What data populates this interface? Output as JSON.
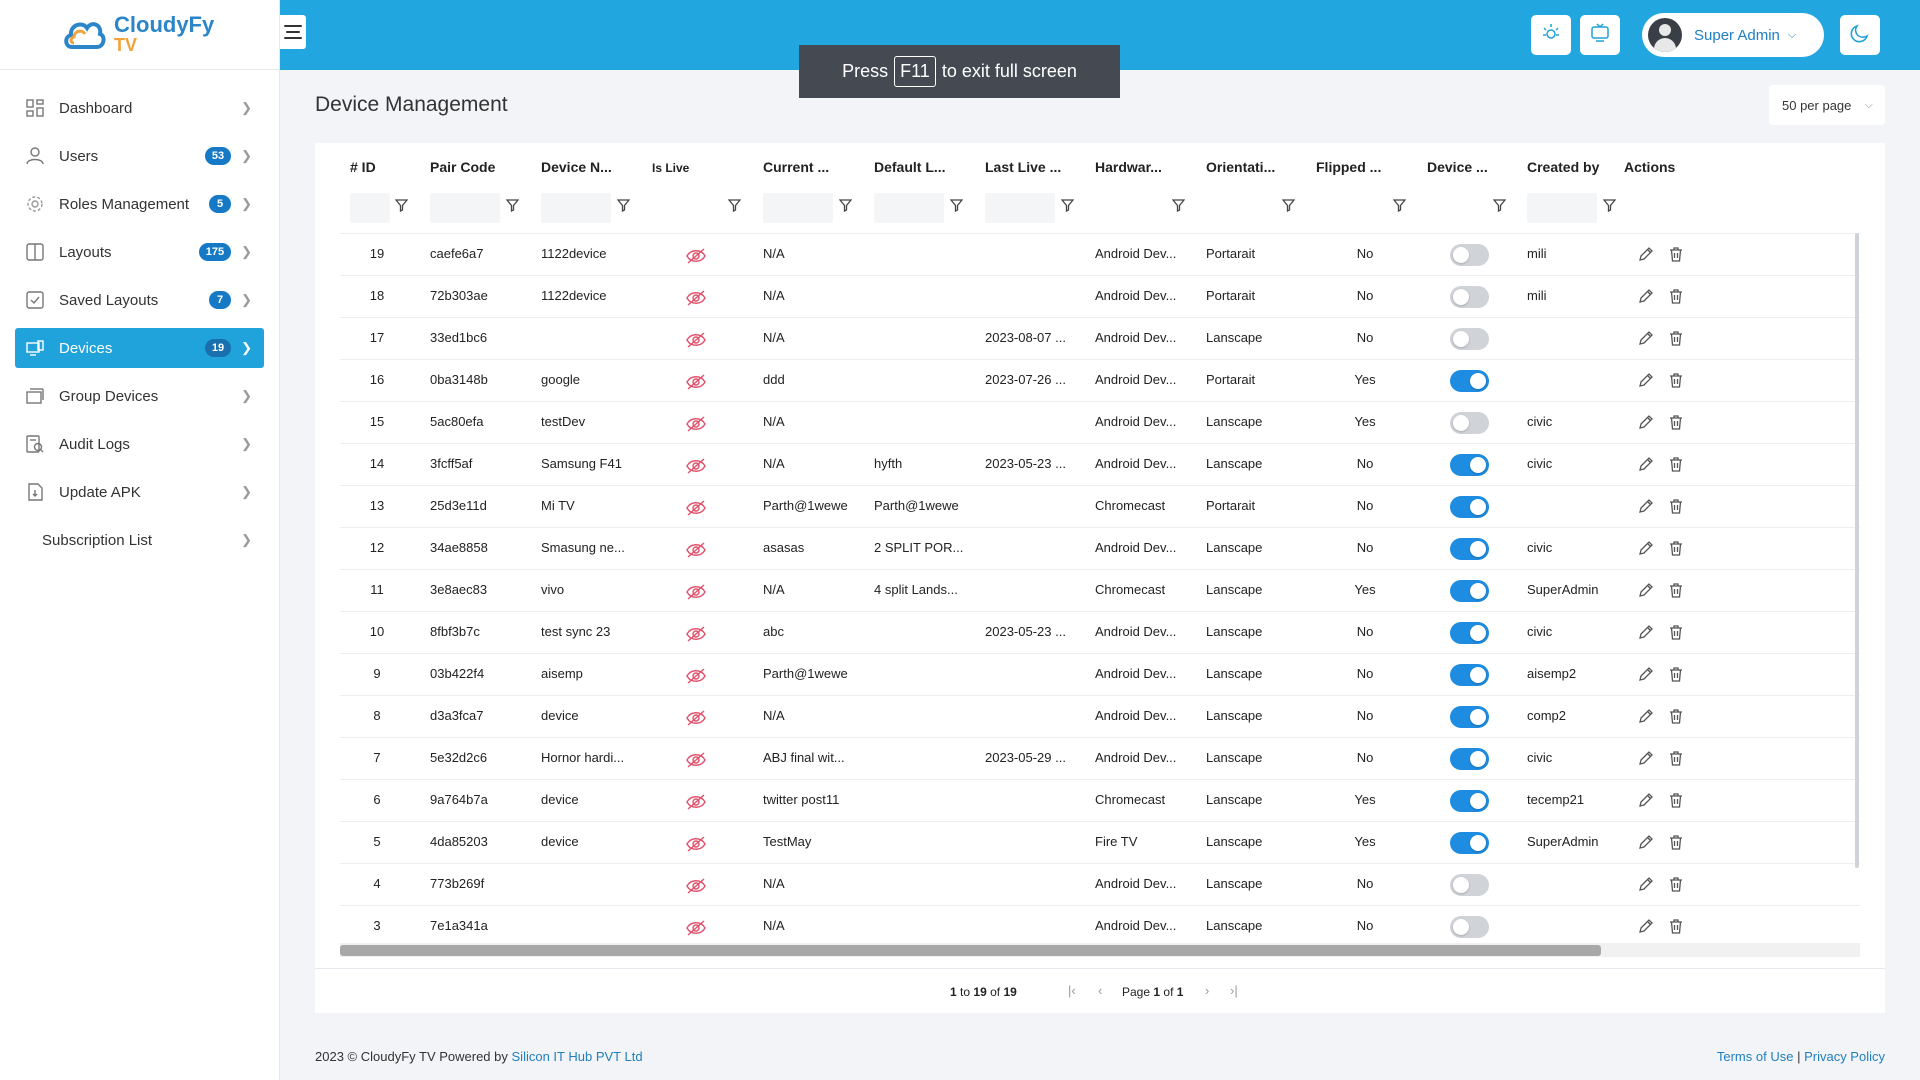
{
  "app": {
    "name": "CloudyFy",
    "sub": "TV"
  },
  "sidebar": {
    "items": [
      {
        "label": "Dashboard",
        "icon": "dashboard-icon",
        "badge": null,
        "active": false
      },
      {
        "label": "Users",
        "icon": "user-icon",
        "badge": "53",
        "active": false
      },
      {
        "label": "Roles Management",
        "icon": "gear-icon",
        "badge": "5",
        "active": false
      },
      {
        "label": "Layouts",
        "icon": "layout-icon",
        "badge": "175",
        "active": false
      },
      {
        "label": "Saved Layouts",
        "icon": "saved-layout-icon",
        "badge": "7",
        "active": false
      },
      {
        "label": "Devices",
        "icon": "devices-icon",
        "badge": "19",
        "active": true
      },
      {
        "label": "Group Devices",
        "icon": "group-devices-icon",
        "badge": null,
        "active": false
      },
      {
        "label": "Audit Logs",
        "icon": "audit-icon",
        "badge": null,
        "active": false
      },
      {
        "label": "Update APK",
        "icon": "apk-icon",
        "badge": null,
        "active": false
      },
      {
        "label": "Subscription List",
        "icon": null,
        "badge": null,
        "active": false
      }
    ]
  },
  "header": {
    "user_name": "Super Admin"
  },
  "fullscreen_notice": {
    "before": "Press",
    "key": "F11",
    "after": "to exit full screen"
  },
  "page": {
    "title": "Device Management",
    "per_page": "50 per page"
  },
  "table": {
    "columns": [
      "# ID",
      "Pair Code",
      "Device N...",
      "Is Live",
      "Current ...",
      "Default L...",
      "Last Live ...",
      "Hardwar...",
      "Orientati...",
      "Flipped ...",
      "Device ...",
      "Created by",
      "Actions"
    ],
    "rows": [
      {
        "id": "19",
        "pair": "caefe6a7",
        "name": "1122device",
        "current": "N/A",
        "default": "",
        "last_live": "",
        "hardware": "Android Dev...",
        "orientation": "Portarait",
        "flipped": "No",
        "device_on": false,
        "created_by": "mili"
      },
      {
        "id": "18",
        "pair": "72b303ae",
        "name": "1122device",
        "current": "N/A",
        "default": "",
        "last_live": "",
        "hardware": "Android Dev...",
        "orientation": "Portarait",
        "flipped": "No",
        "device_on": false,
        "created_by": "mili"
      },
      {
        "id": "17",
        "pair": "33ed1bc6",
        "name": "",
        "current": "N/A",
        "default": "",
        "last_live": "2023-08-07 ...",
        "hardware": "Android Dev...",
        "orientation": "Lanscape",
        "flipped": "No",
        "device_on": false,
        "created_by": ""
      },
      {
        "id": "16",
        "pair": "0ba3148b",
        "name": "google",
        "current": "ddd",
        "default": "",
        "last_live": "2023-07-26 ...",
        "hardware": "Android Dev...",
        "orientation": "Portarait",
        "flipped": "Yes",
        "device_on": true,
        "created_by": ""
      },
      {
        "id": "15",
        "pair": "5ac80efa",
        "name": "testDev",
        "current": "N/A",
        "default": "",
        "last_live": "",
        "hardware": "Android Dev...",
        "orientation": "Lanscape",
        "flipped": "Yes",
        "device_on": false,
        "created_by": "civic"
      },
      {
        "id": "14",
        "pair": "3fcff5af",
        "name": "Samsung F41",
        "current": "N/A",
        "default": "hyfth",
        "last_live": "2023-05-23 ...",
        "hardware": "Android Dev...",
        "orientation": "Lanscape",
        "flipped": "No",
        "device_on": true,
        "created_by": "civic"
      },
      {
        "id": "13",
        "pair": "25d3e11d",
        "name": "Mi TV",
        "current": "Parth@1wewe",
        "default": "Parth@1wewe",
        "last_live": "",
        "hardware": "Chromecast",
        "orientation": "Portarait",
        "flipped": "No",
        "device_on": true,
        "created_by": ""
      },
      {
        "id": "12",
        "pair": "34ae8858",
        "name": "Smasung ne...",
        "current": "asasas",
        "default": "2 SPLIT POR...",
        "last_live": "",
        "hardware": "Android Dev...",
        "orientation": "Lanscape",
        "flipped": "No",
        "device_on": true,
        "created_by": "civic"
      },
      {
        "id": "11",
        "pair": "3e8aec83",
        "name": "vivo",
        "current": "N/A",
        "default": "4 split Lands...",
        "last_live": "",
        "hardware": "Chromecast",
        "orientation": "Lanscape",
        "flipped": "Yes",
        "device_on": true,
        "created_by": "SuperAdmin"
      },
      {
        "id": "10",
        "pair": "8fbf3b7c",
        "name": "test sync 23",
        "current": "abc",
        "default": "",
        "last_live": "2023-05-23 ...",
        "hardware": "Android Dev...",
        "orientation": "Lanscape",
        "flipped": "No",
        "device_on": true,
        "created_by": "civic"
      },
      {
        "id": "9",
        "pair": "03b422f4",
        "name": "aisemp",
        "current": "Parth@1wewe",
        "default": "",
        "last_live": "",
        "hardware": "Android Dev...",
        "orientation": "Lanscape",
        "flipped": "No",
        "device_on": true,
        "created_by": "aisemp2"
      },
      {
        "id": "8",
        "pair": "d3a3fca7",
        "name": "device",
        "current": "N/A",
        "default": "",
        "last_live": "",
        "hardware": "Android Dev...",
        "orientation": "Lanscape",
        "flipped": "No",
        "device_on": true,
        "created_by": "comp2"
      },
      {
        "id": "7",
        "pair": "5e32d2c6",
        "name": "Hornor hardi...",
        "current": "ABJ final wit...",
        "default": "",
        "last_live": "2023-05-29 ...",
        "hardware": "Android Dev...",
        "orientation": "Lanscape",
        "flipped": "No",
        "device_on": true,
        "created_by": "civic"
      },
      {
        "id": "6",
        "pair": "9a764b7a",
        "name": "device",
        "current": "twitter post11",
        "default": "",
        "last_live": "",
        "hardware": "Chromecast",
        "orientation": "Lanscape",
        "flipped": "Yes",
        "device_on": true,
        "created_by": "tecemp21"
      },
      {
        "id": "5",
        "pair": "4da85203",
        "name": "device",
        "current": "TestMay",
        "default": "",
        "last_live": "",
        "hardware": "Fire TV",
        "orientation": "Lanscape",
        "flipped": "Yes",
        "device_on": true,
        "created_by": "SuperAdmin"
      },
      {
        "id": "4",
        "pair": "773b269f",
        "name": "",
        "current": "N/A",
        "default": "",
        "last_live": "",
        "hardware": "Android Dev...",
        "orientation": "Lanscape",
        "flipped": "No",
        "device_on": false,
        "created_by": ""
      },
      {
        "id": "3",
        "pair": "7e1a341a",
        "name": "",
        "current": "N/A",
        "default": "",
        "last_live": "",
        "hardware": "Android Dev...",
        "orientation": "Lanscape",
        "flipped": "No",
        "device_on": false,
        "created_by": ""
      }
    ]
  },
  "pagination": {
    "range_from": "1",
    "range_to_label": "to",
    "range_to": "19",
    "of_label": "of",
    "total": "19",
    "page_label": "Page",
    "page": "1",
    "page_of": "of",
    "pages": "1"
  },
  "footer": {
    "copyright": "2023 © CloudyFy TV Powered by",
    "company": "Silicon IT Hub PVT Ltd",
    "terms": "Terms of Use",
    "sep": "|",
    "privacy": "Privacy Policy"
  },
  "colors": {
    "topbar": "#21a6df",
    "active": "#20a2db",
    "badge": "#1579c5",
    "toggle_on": "#1e8ce0",
    "live_off": "#e0506a"
  }
}
